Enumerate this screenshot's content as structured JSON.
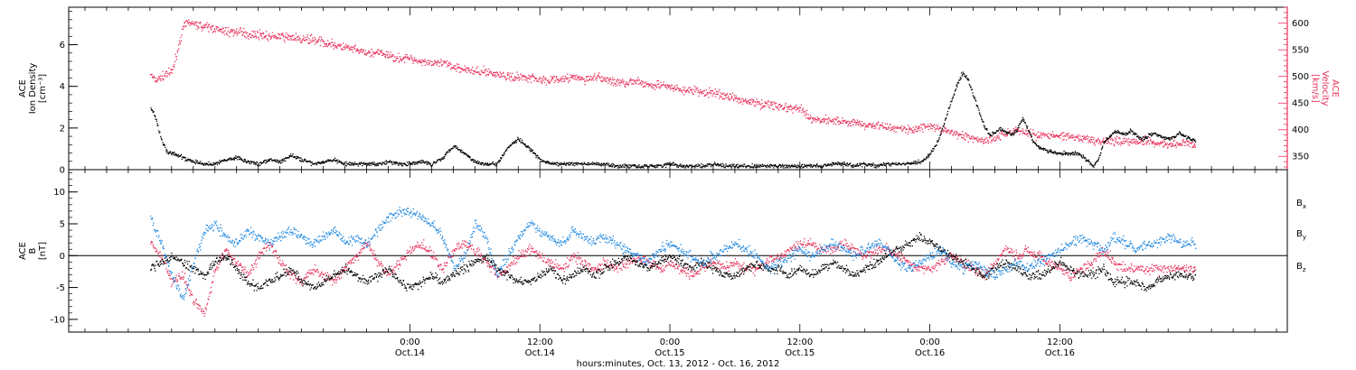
{
  "chart_data": [
    {
      "type": "scatter",
      "panel": "top",
      "ylabel_lines": [
        "ACE",
        "Ion Density",
        "[cm⁻³]"
      ],
      "ylim": [
        0,
        7.8
      ],
      "yticks": [
        0,
        2,
        4,
        6
      ],
      "y2label_lines": [
        "ACE",
        "Velocity",
        "[km/s]"
      ],
      "y2lim": [
        325,
        630
      ],
      "y2ticks": [
        350,
        400,
        450,
        500,
        550,
        600
      ],
      "colors": {
        "density": "#000000",
        "velocity": "#e8305a"
      },
      "series": [
        {
          "axis": "left",
          "color_key": "density",
          "x": [
            0,
            0.5,
            1,
            1.5,
            2,
            3,
            4,
            5,
            6,
            7,
            8,
            9,
            10,
            11,
            12,
            13,
            14,
            15,
            16,
            17,
            18,
            19,
            20,
            21,
            22,
            23,
            24,
            25,
            26,
            27,
            28,
            29,
            30,
            31,
            32,
            33,
            34,
            35,
            36,
            37,
            38,
            39,
            40,
            41,
            42,
            43,
            44,
            45,
            46,
            47,
            48,
            49,
            50,
            51,
            52,
            53,
            54,
            55,
            56,
            57,
            58,
            59,
            60,
            61,
            62,
            63,
            64,
            65,
            66,
            67,
            68,
            69,
            70,
            71,
            71.5,
            72,
            72.5,
            73,
            73.5,
            74,
            74.5,
            75,
            75.5,
            76,
            76.5,
            77,
            77.5,
            78,
            78.5,
            79,
            79.5,
            80,
            80.5,
            81,
            81.5,
            82,
            82.5,
            83,
            83.5,
            84,
            84.5,
            85,
            85.5,
            86,
            87,
            87.5,
            88,
            88.5,
            89,
            89.5,
            90,
            90.5,
            91,
            91.5,
            92,
            92.5,
            93,
            93.5,
            94,
            94.5,
            95,
            95.5,
            96,
            96.5
          ],
          "y": [
            3.0,
            2.5,
            1.5,
            0.9,
            0.8,
            0.6,
            0.4,
            0.3,
            0.3,
            0.5,
            0.6,
            0.4,
            0.3,
            0.5,
            0.4,
            0.7,
            0.5,
            0.3,
            0.4,
            0.5,
            0.3,
            0.3,
            0.3,
            0.3,
            0.4,
            0.3,
            0.3,
            0.4,
            0.3,
            0.6,
            1.2,
            0.8,
            0.4,
            0.3,
            0.3,
            1.1,
            1.5,
            1.0,
            0.5,
            0.3,
            0.3,
            0.3,
            0.3,
            0.3,
            0.3,
            0.2,
            0.2,
            0.2,
            0.2,
            0.2,
            0.3,
            0.2,
            0.2,
            0.2,
            0.3,
            0.2,
            0.2,
            0.2,
            0.2,
            0.2,
            0.2,
            0.2,
            0.2,
            0.2,
            0.2,
            0.3,
            0.3,
            0.2,
            0.3,
            0.2,
            0.3,
            0.3,
            0.3,
            0.4,
            0.5,
            0.8,
            1.2,
            1.8,
            2.6,
            3.4,
            4.1,
            4.7,
            4.3,
            3.6,
            2.8,
            2.1,
            1.7,
            1.8,
            2.0,
            1.8,
            1.7,
            1.9,
            2.5,
            2.0,
            1.4,
            1.1,
            1.0,
            0.9,
            0.8,
            0.8,
            0.8,
            0.8,
            0.8,
            0.7,
            0.2,
            0.5,
            1.3,
            1.6,
            1.8,
            1.8,
            1.7,
            1.9,
            1.7,
            1.5,
            1.6,
            1.8,
            1.7,
            1.6,
            1.5,
            1.6,
            1.8,
            1.6,
            1.5,
            1.4
          ]
        },
        {
          "axis": "right",
          "color_key": "velocity",
          "x": [
            0,
            0.5,
            1,
            1.5,
            2,
            2.5,
            3,
            3.5,
            4,
            5,
            6,
            7,
            8,
            9,
            10,
            11,
            12,
            13,
            14,
            15,
            16,
            17,
            18,
            19,
            20,
            21,
            22,
            23,
            24,
            25,
            26,
            27,
            28,
            29,
            30,
            31,
            32,
            33,
            34,
            35,
            36,
            37,
            38,
            39,
            40,
            41,
            42,
            43,
            44,
            45,
            46,
            47,
            48,
            49,
            50,
            51,
            52,
            53,
            54,
            55,
            56,
            57,
            58,
            59,
            60,
            61,
            62,
            63,
            64,
            65,
            66,
            67,
            68,
            69,
            70,
            71,
            72,
            73,
            74,
            75,
            76,
            77,
            78,
            79,
            80,
            81,
            82,
            83,
            84,
            85,
            86,
            87,
            88,
            89,
            90,
            91,
            92,
            93,
            94,
            95,
            96,
            96.5
          ],
          "y": [
            505,
            495,
            500,
            505,
            510,
            550,
            590,
            605,
            600,
            595,
            590,
            585,
            585,
            580,
            580,
            575,
            575,
            575,
            570,
            570,
            565,
            560,
            555,
            550,
            545,
            545,
            540,
            535,
            535,
            530,
            525,
            525,
            520,
            515,
            510,
            510,
            505,
            500,
            500,
            500,
            495,
            495,
            495,
            500,
            495,
            500,
            495,
            490,
            490,
            490,
            485,
            485,
            480,
            475,
            475,
            470,
            470,
            465,
            460,
            455,
            450,
            450,
            445,
            440,
            440,
            420,
            420,
            420,
            415,
            415,
            410,
            410,
            405,
            405,
            400,
            405,
            410,
            400,
            395,
            390,
            385,
            380,
            385,
            395,
            400,
            395,
            390,
            390,
            390,
            385,
            385,
            380,
            380,
            380,
            380,
            380,
            380,
            375,
            375,
            375,
            375,
            372
          ]
        }
      ],
      "frame_rows": [
        "Oct. 13, 2012",
        "Oct. 14",
        "Oct. 15",
        "Oct. 16"
      ]
    },
    {
      "type": "scatter",
      "panel": "bottom",
      "ylabel_lines": [
        "ACE",
        "B",
        "[nT]"
      ],
      "ylim": [
        -12,
        13.5
      ],
      "yticks": [
        -10,
        -5,
        0,
        5,
        10
      ],
      "zero_line": true,
      "colors": {
        "Bx": "#000000",
        "By": "#1f88e0",
        "Bz": "#e8305a"
      },
      "legend": [
        "Bx",
        "By",
        "Bz"
      ],
      "legend_labels": {
        "Bx": [
          "B",
          "x"
        ],
        "By": [
          "B",
          "y"
        ],
        "Bz": [
          "B",
          "z"
        ]
      },
      "series": [
        {
          "color_key": "Bx",
          "x": [
            0,
            1,
            2,
            3,
            4,
            5,
            6,
            7,
            8,
            9,
            10,
            11,
            12,
            13,
            14,
            15,
            16,
            17,
            18,
            19,
            20,
            21,
            22,
            23,
            24,
            25,
            26,
            27,
            28,
            29,
            30,
            31,
            32,
            33,
            34,
            35,
            36,
            37,
            38,
            39,
            40,
            41,
            42,
            43,
            44,
            45,
            46,
            47,
            48,
            49,
            50,
            51,
            52,
            53,
            54,
            55,
            56,
            57,
            58,
            59,
            60,
            61,
            62,
            63,
            64,
            65,
            66,
            67,
            68,
            69,
            70,
            71,
            72,
            73,
            74,
            75,
            76,
            77,
            78,
            79,
            80,
            81,
            82,
            83,
            84,
            85,
            86,
            87,
            88,
            89,
            90,
            91,
            92,
            93,
            94,
            95,
            96,
            96.5
          ],
          "y": [
            -2,
            -1,
            0,
            -1,
            -2,
            -3,
            -1,
            0,
            -2,
            -4,
            -5,
            -4,
            -3,
            -2,
            -4,
            -5,
            -4,
            -3,
            -2,
            -3,
            -4,
            -3,
            -2,
            -4,
            -5,
            -4,
            -3,
            -4,
            -3,
            -2,
            -1,
            0,
            -2,
            -3,
            -4,
            -4,
            -3,
            -2,
            -4,
            -3,
            -2,
            -3,
            -2,
            -1,
            0,
            -1,
            -2,
            -1,
            0,
            -1,
            -2,
            -1,
            -2,
            -3,
            -3,
            -2,
            -1,
            -2,
            -2,
            -3,
            -2,
            -3,
            -2,
            -1,
            -2,
            -3,
            -2,
            -1,
            0,
            1,
            2,
            3,
            2,
            1,
            0,
            -1,
            -2,
            -3,
            -2,
            -1,
            -2,
            -3,
            -3,
            -2,
            -1,
            -2,
            -3,
            -3,
            -2,
            -4,
            -4,
            -4,
            -5,
            -4,
            -3,
            -3,
            -3,
            -3
          ]
        },
        {
          "color_key": "By",
          "x": [
            0,
            1,
            2,
            3,
            4,
            5,
            6,
            7,
            8,
            9,
            10,
            11,
            12,
            13,
            14,
            15,
            16,
            17,
            18,
            19,
            20,
            21,
            22,
            23,
            24,
            25,
            26,
            27,
            28,
            29,
            30,
            31,
            32,
            33,
            34,
            35,
            36,
            37,
            38,
            39,
            40,
            41,
            42,
            43,
            44,
            45,
            46,
            47,
            48,
            49,
            50,
            51,
            52,
            53,
            54,
            55,
            56,
            57,
            58,
            59,
            60,
            61,
            62,
            63,
            64,
            65,
            66,
            67,
            68,
            69,
            70,
            71,
            72,
            73,
            74,
            75,
            76,
            77,
            78,
            79,
            80,
            81,
            82,
            83,
            84,
            85,
            86,
            87,
            88,
            89,
            90,
            91,
            92,
            93,
            94,
            95,
            96,
            96.5
          ],
          "y": [
            6,
            2,
            -3,
            -7,
            -1,
            4,
            5,
            3,
            2,
            4,
            3,
            2,
            3,
            4,
            3,
            2,
            3,
            4,
            2,
            3,
            2,
            4,
            6,
            7,
            7,
            6,
            5,
            3,
            -2,
            0,
            5,
            3,
            -3,
            0,
            3,
            5,
            4,
            3,
            2,
            4,
            3,
            2,
            3,
            2,
            1,
            0,
            -1,
            1,
            2,
            1,
            0,
            -1,
            0,
            1,
            2,
            1,
            0,
            -2,
            -1,
            0,
            1,
            0,
            1,
            2,
            1,
            0,
            1,
            2,
            1,
            -1,
            -2,
            -1,
            0,
            1,
            -1,
            -2,
            -1,
            -2,
            -3,
            -2,
            -1,
            -2,
            -1,
            0,
            1,
            2,
            3,
            2,
            1,
            3,
            2,
            1,
            2,
            2,
            3,
            2,
            2,
            2
          ]
        },
        {
          "color_key": "Bz",
          "x": [
            0,
            1,
            2,
            3,
            4,
            5,
            6,
            7,
            8,
            9,
            10,
            11,
            12,
            13,
            14,
            15,
            16,
            17,
            18,
            19,
            20,
            21,
            22,
            23,
            24,
            25,
            26,
            27,
            28,
            29,
            30,
            31,
            32,
            33,
            34,
            35,
            36,
            37,
            38,
            39,
            40,
            41,
            42,
            43,
            44,
            45,
            46,
            47,
            48,
            49,
            50,
            51,
            52,
            53,
            54,
            55,
            56,
            57,
            58,
            59,
            60,
            61,
            62,
            63,
            64,
            65,
            66,
            67,
            68,
            69,
            70,
            71,
            72,
            73,
            74,
            75,
            76,
            77,
            78,
            79,
            80,
            81,
            82,
            83,
            84,
            85,
            86,
            87,
            88,
            89,
            90,
            91,
            92,
            93,
            94,
            95,
            96,
            96.5
          ],
          "y": [
            2,
            0,
            -4,
            -3,
            -7,
            -9,
            -2,
            1,
            -1,
            -3,
            0,
            2,
            -1,
            -3,
            -4,
            -2,
            -3,
            -4,
            -2,
            0,
            2,
            -1,
            -3,
            -1,
            1,
            2,
            0,
            -2,
            1,
            2,
            1,
            -1,
            -3,
            -2,
            0,
            1,
            0,
            -1,
            -2,
            0,
            -1,
            -2,
            -1,
            -2,
            -1,
            0,
            -1,
            -2,
            -1,
            -2,
            -3,
            -2,
            -1,
            -2,
            -1,
            -2,
            -2,
            -1,
            0,
            1,
            2,
            2,
            1,
            1,
            2,
            1,
            0,
            1,
            1,
            0,
            -1,
            -2,
            -2,
            -1,
            0,
            -1,
            -2,
            -3,
            -1,
            1,
            0,
            1,
            0,
            -1,
            -2,
            -3,
            -2,
            -1,
            1,
            -1,
            -2,
            -2,
            -2,
            -2,
            -2,
            -2,
            -2,
            -2
          ]
        }
      ]
    }
  ],
  "x_axis": {
    "xlim": [
      -7.5,
      105
    ],
    "ticks": [
      {
        "hour": 24,
        "time": "0:00",
        "date": "Oct.14"
      },
      {
        "hour": 36,
        "time": "12:00",
        "date": "Oct.14"
      },
      {
        "hour": 48,
        "time": "0:00",
        "date": "Oct.15"
      },
      {
        "hour": 60,
        "time": "12:00",
        "date": "Oct.15"
      },
      {
        "hour": 72,
        "time": "0:00",
        "date": "Oct.16"
      },
      {
        "hour": 84,
        "time": "12:00",
        "date": "Oct.16"
      }
    ],
    "minor_step_hours": 2,
    "label": "hours:minutes, Oct. 13, 2012 - Oct. 16, 2012"
  }
}
